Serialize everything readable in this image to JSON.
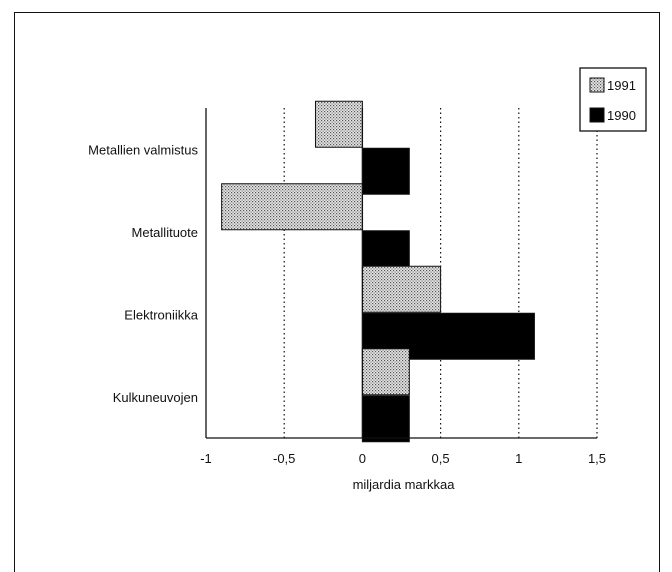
{
  "chart_data": {
    "type": "bar",
    "orientation": "horizontal",
    "categories": [
      "Metallien valmistus",
      "Metallituote",
      "Elektroniikka",
      "Kulkuneuvojen"
    ],
    "series": [
      {
        "name": "1991",
        "values": [
          -0.3,
          -0.9,
          0.5,
          0.3
        ],
        "color": "#cfcfcf",
        "pattern": "dotted"
      },
      {
        "name": "1990",
        "values": [
          0.3,
          0.3,
          1.1,
          0.3
        ],
        "color": "#000000",
        "pattern": "solid"
      }
    ],
    "title": "",
    "xlabel": "miljardia markkaa",
    "ylabel": "",
    "xlim": [
      -1,
      1.5
    ],
    "xticks": [
      -1,
      -0.5,
      0,
      0.5,
      1,
      1.5
    ],
    "xtick_labels": [
      "-1",
      "-0,5",
      "0",
      "0,5",
      "1",
      "1,5"
    ],
    "grid": "vertical dotted",
    "legend": "top-right"
  }
}
